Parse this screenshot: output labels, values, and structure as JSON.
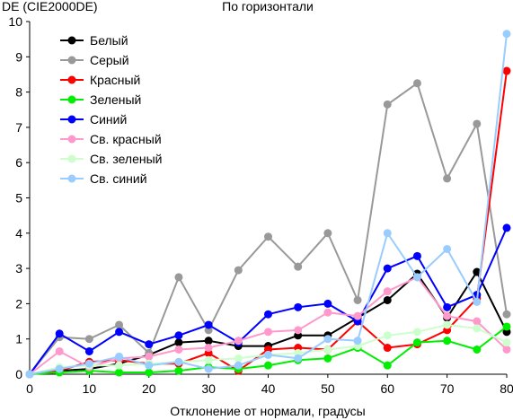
{
  "chart_data": {
    "type": "line",
    "title": "По горизонтали",
    "ylabel": "DE (CIE2000DE)",
    "xlabel": "Отклонение от нормали, градусы",
    "xlim": [
      0,
      80
    ],
    "ylim": [
      0,
      10
    ],
    "x_ticks": [
      0,
      10,
      20,
      30,
      40,
      50,
      60,
      70,
      80
    ],
    "y_ticks": [
      0,
      1,
      2,
      3,
      4,
      5,
      6,
      7,
      8,
      9,
      10
    ],
    "grid": false,
    "legend_position": "top-left",
    "x": [
      0,
      5,
      10,
      15,
      20,
      25,
      30,
      35,
      40,
      45,
      50,
      55,
      60,
      65,
      70,
      75,
      80
    ],
    "series": [
      {
        "name": "Белый",
        "line_color": "#000000",
        "marker_color": "#000000",
        "values": [
          0,
          0.1,
          0.15,
          0.3,
          0.55,
          0.9,
          0.95,
          0.8,
          0.8,
          1.1,
          1.1,
          1.6,
          2.1,
          2.85,
          1.6,
          2.9,
          1.2
        ]
      },
      {
        "name": "Серый",
        "line_color": "#999999",
        "marker_color": "#999999",
        "values": [
          0,
          1.05,
          1.0,
          1.4,
          0.6,
          2.75,
          1.25,
          2.95,
          3.9,
          3.05,
          4.0,
          2.1,
          7.65,
          8.25,
          5.55,
          7.1,
          1.7
        ]
      },
      {
        "name": "Красный",
        "line_color": "#ff0000",
        "marker_color": "#ff0000",
        "values": [
          0,
          0.1,
          0.35,
          0.4,
          0.3,
          0.3,
          0.6,
          0.1,
          0.7,
          0.75,
          0.7,
          1.5,
          0.75,
          0.85,
          1.25,
          2.15,
          8.6
        ]
      },
      {
        "name": "Зеленый",
        "line_color": "#00ee00",
        "marker_color": "#00ee00",
        "values": [
          0,
          0.05,
          0.1,
          0.05,
          0.05,
          0.1,
          0.2,
          0.15,
          0.25,
          0.4,
          0.45,
          0.75,
          0.25,
          0.9,
          0.95,
          0.7,
          1.35
        ]
      },
      {
        "name": "Синий",
        "line_color": "#0000ff",
        "marker_color": "#0000ff",
        "values": [
          0,
          1.15,
          0.65,
          1.2,
          0.85,
          1.1,
          1.4,
          0.9,
          1.7,
          1.9,
          2.0,
          1.5,
          3.0,
          3.35,
          1.9,
          2.25,
          4.15
        ]
      },
      {
        "name": "Св. красный",
        "line_color": "#ff99cc",
        "marker_color": "#ff99cc",
        "values": [
          0,
          0.65,
          0.2,
          0.45,
          0.5,
          0.7,
          0.75,
          0.95,
          1.2,
          1.25,
          1.75,
          1.65,
          2.35,
          2.75,
          1.65,
          1.5,
          0.7
        ]
      },
      {
        "name": "Св. зеленый",
        "line_color": "#ccffcc",
        "marker_color": "#ccffcc",
        "values": [
          0,
          0.2,
          0.25,
          0.25,
          0.3,
          0.35,
          0.4,
          0.45,
          0.55,
          0.6,
          0.7,
          0.8,
          1.1,
          1.2,
          1.4,
          1.3,
          0.9
        ]
      },
      {
        "name": "Св. синий",
        "line_color": "#99ccff",
        "marker_color": "#99ccff",
        "values": [
          0,
          0.15,
          0.3,
          0.5,
          0.25,
          0.35,
          0.15,
          0.25,
          0.55,
          0.45,
          1.0,
          0.95,
          4.0,
          2.75,
          3.55,
          2.05,
          9.65
        ]
      }
    ]
  }
}
